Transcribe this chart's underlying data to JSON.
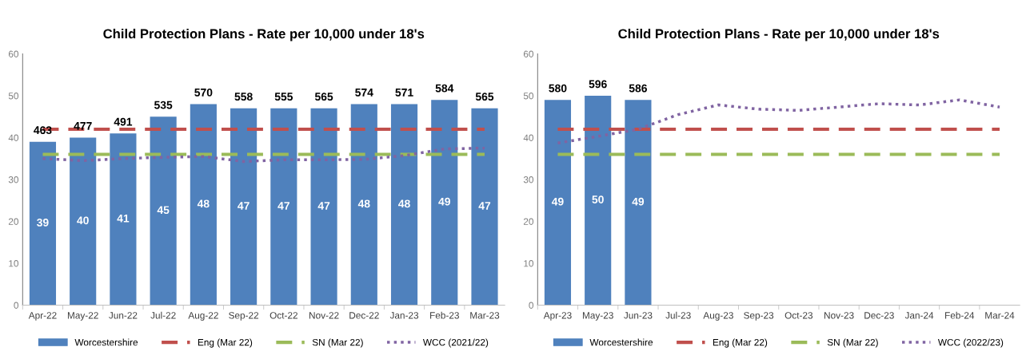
{
  "chart_data": [
    {
      "type": "bar",
      "title": "Child Protection Plans - Rate per 10,000 under 18's",
      "categories": [
        "Apr-22",
        "May-22",
        "Jun-22",
        "Jul-22",
        "Aug-22",
        "Sep-22",
        "Oct-22",
        "Nov-22",
        "Dec-22",
        "Jan-23",
        "Feb-23",
        "Mar-23"
      ],
      "series": [
        {
          "name": "Worcestershire",
          "color": "#4f81bd",
          "values": [
            39,
            40,
            41,
            45,
            48,
            47,
            47,
            47,
            48,
            48,
            49,
            47
          ],
          "value_labels": [
            "39",
            "40",
            "41",
            "45",
            "48",
            "47",
            "47",
            "47",
            "48",
            "48",
            "49",
            "47"
          ]
        },
        {
          "name": "Eng (Mar 22)",
          "type": "line",
          "line_style": "dashed",
          "color": "#c0504d",
          "values": [
            42,
            42,
            42,
            42,
            42,
            42,
            42,
            42,
            42,
            42,
            42,
            42
          ]
        },
        {
          "name": "SN (Mar 22)",
          "type": "line",
          "line_style": "dashed",
          "color": "#9bbb59",
          "values": [
            36,
            36,
            36,
            36,
            36,
            36,
            36,
            36,
            36,
            36,
            36,
            36
          ]
        },
        {
          "name": "WCC (2021/22)",
          "type": "line",
          "line_style": "dotted",
          "color": "#8064a2",
          "values": [
            35,
            34.5,
            35,
            35.3,
            35.5,
            34.3,
            34.7,
            34.7,
            34.8,
            35.7,
            37.3,
            37.5
          ]
        }
      ],
      "annotations": [
        {
          "text": "463",
          "x": "Apr-22",
          "y": 39
        },
        {
          "text": "477",
          "x": "May-22",
          "y": 40
        },
        {
          "text": "491",
          "x": "Jun-22",
          "y": 41
        },
        {
          "text": "535",
          "x": "Jul-22",
          "y": 45
        },
        {
          "text": "570",
          "x": "Aug-22",
          "y": 48
        },
        {
          "text": "558",
          "x": "Sep-22",
          "y": 47
        },
        {
          "text": "555",
          "x": "Oct-22",
          "y": 47
        },
        {
          "text": "565",
          "x": "Nov-22",
          "y": 47
        },
        {
          "text": "574",
          "x": "Dec-22",
          "y": 48
        },
        {
          "text": "571",
          "x": "Jan-23",
          "y": 48
        },
        {
          "text": "584",
          "x": "Feb-23",
          "y": 49
        },
        {
          "text": "565",
          "x": "Mar-23",
          "y": 47
        }
      ],
      "ylim": [
        0,
        60
      ],
      "yticks": [
        0,
        10,
        20,
        30,
        40,
        50,
        60
      ],
      "grid": false,
      "legend": "bottom"
    },
    {
      "type": "bar",
      "title": "Child Protection Plans - Rate per 10,000 under 18's",
      "categories": [
        "Apr-23",
        "May-23",
        "Jun-23",
        "Jul-23",
        "Aug-23",
        "Sep-23",
        "Oct-23",
        "Nov-23",
        "Dec-23",
        "Jan-24",
        "Feb-24",
        "Mar-24"
      ],
      "series": [
        {
          "name": "Worcestershire",
          "color": "#4f81bd",
          "values": [
            49,
            50,
            49,
            null,
            null,
            null,
            null,
            null,
            null,
            null,
            null,
            null
          ],
          "value_labels": [
            "49",
            "50",
            "49",
            null,
            null,
            null,
            null,
            null,
            null,
            null,
            null,
            null
          ]
        },
        {
          "name": "Eng (Mar 22)",
          "type": "line",
          "line_style": "dashed",
          "color": "#c0504d",
          "values": [
            42,
            42,
            42,
            42,
            42,
            42,
            42,
            42,
            42,
            42,
            42,
            42
          ]
        },
        {
          "name": "SN (Mar 22)",
          "type": "line",
          "line_style": "dashed",
          "color": "#9bbb59",
          "values": [
            36,
            36,
            36,
            36,
            36,
            36,
            36,
            36,
            36,
            36,
            36,
            36
          ]
        },
        {
          "name": "WCC (2022/23)",
          "type": "line",
          "line_style": "dotted",
          "color": "#8064a2",
          "values": [
            38.7,
            40.3,
            42,
            45.5,
            47.8,
            46.8,
            46.5,
            47.3,
            48.1,
            47.8,
            49,
            47.3
          ]
        }
      ],
      "annotations": [
        {
          "text": "580",
          "x": "Apr-23",
          "y": 49
        },
        {
          "text": "596",
          "x": "May-23",
          "y": 50
        },
        {
          "text": "586",
          "x": "Jun-23",
          "y": 49
        }
      ],
      "ylim": [
        0,
        60
      ],
      "yticks": [
        0,
        10,
        20,
        30,
        40,
        50,
        60
      ],
      "grid": false,
      "legend": "bottom"
    }
  ]
}
